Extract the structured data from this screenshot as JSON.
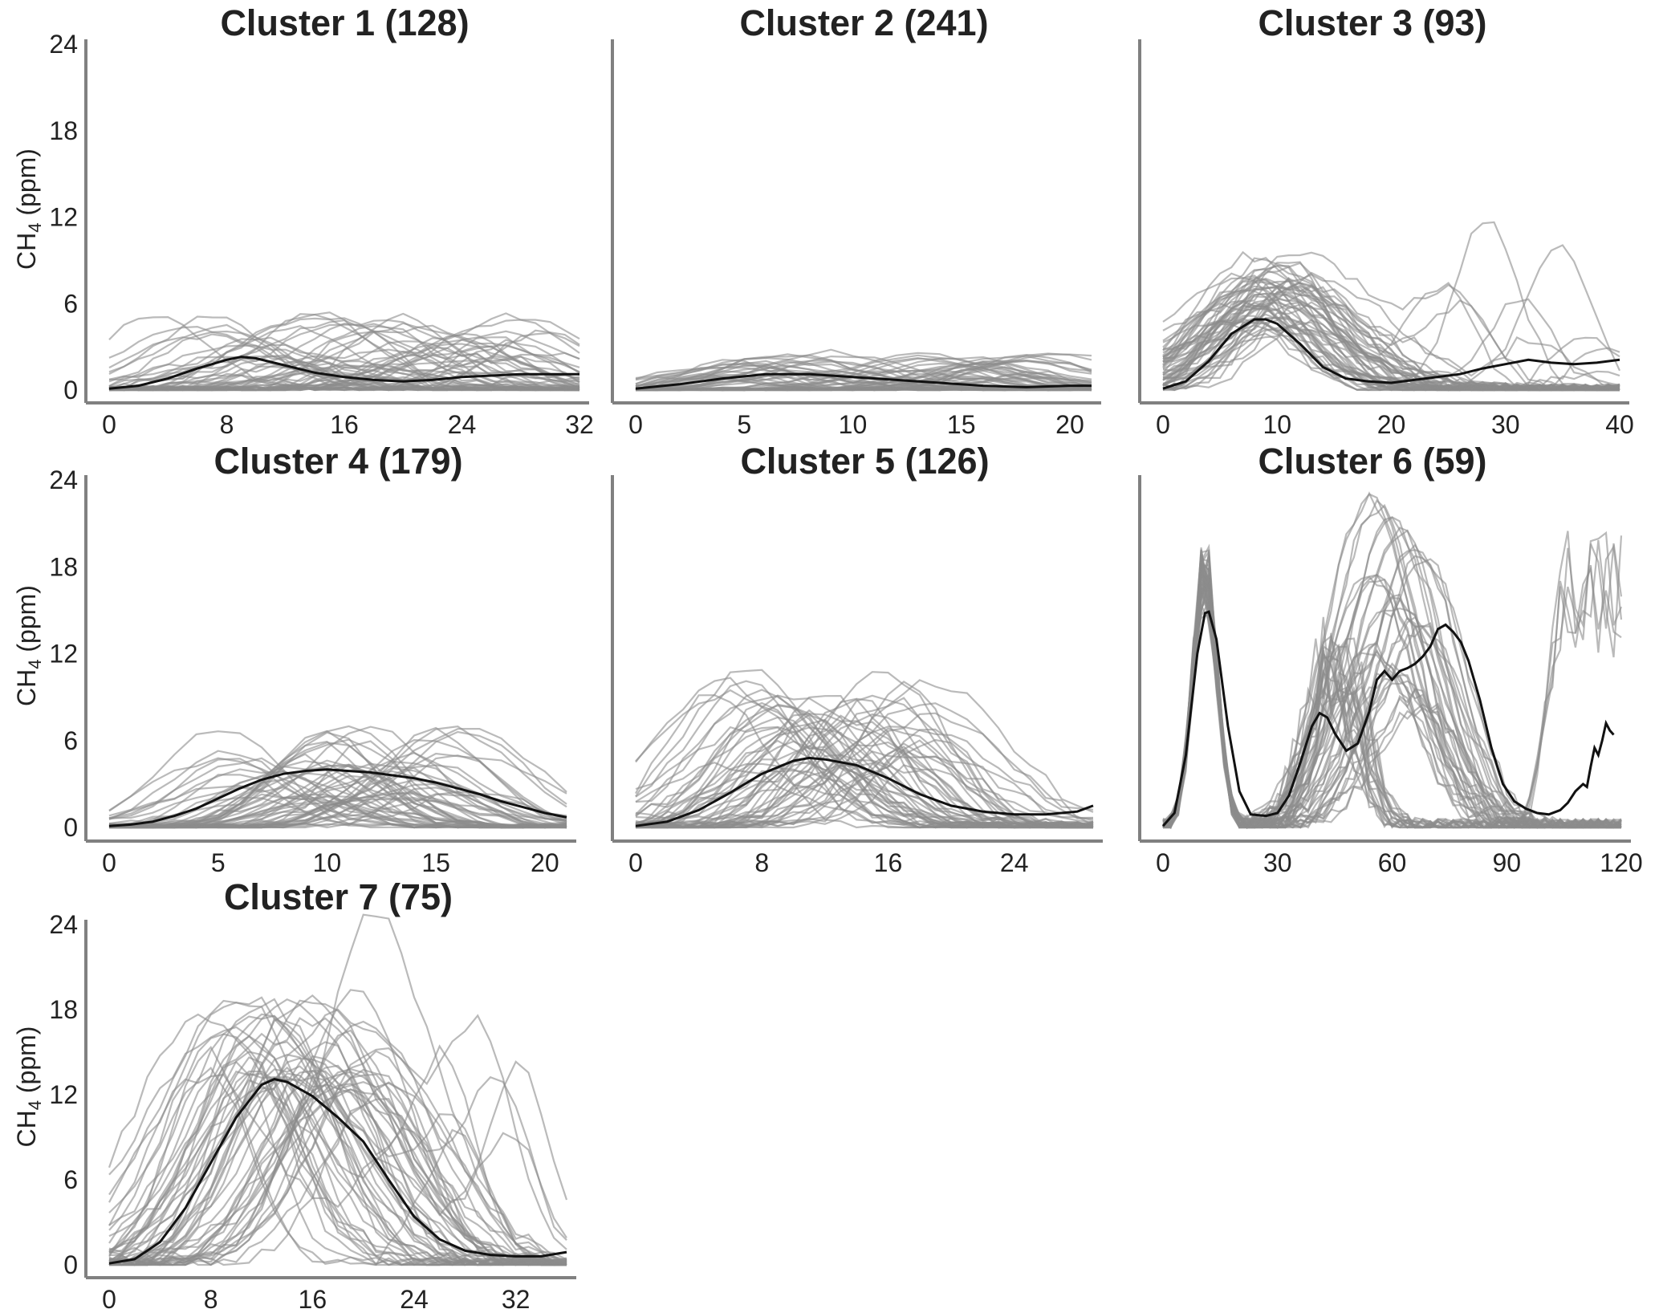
{
  "figure": {
    "colors": {
      "member_line": "#8c8c8c",
      "mean_line": "#111111",
      "axis": "#808080",
      "text": "#222222"
    }
  },
  "chart_data": [
    {
      "type": "line",
      "title": "Cluster 1 (128)",
      "xlabel": "",
      "ylabel": "CH4 (ppm)",
      "xticks": [
        0,
        8,
        16,
        24,
        32
      ],
      "yticks": [
        0,
        6,
        12,
        18,
        24
      ],
      "xlim": [
        0,
        32
      ],
      "ylim": [
        0,
        24
      ],
      "grid": false,
      "members": 128,
      "series": [
        {
          "role": "mean",
          "x": [
            0,
            2,
            4,
            6,
            8,
            9,
            10,
            12,
            14,
            16,
            18,
            20,
            22,
            24,
            26,
            28,
            30,
            32
          ],
          "y": [
            0.1,
            0.3,
            0.8,
            1.5,
            2.1,
            2.3,
            2.2,
            1.7,
            1.2,
            0.9,
            0.7,
            0.6,
            0.7,
            0.9,
            1.0,
            1.1,
            1.1,
            1.1
          ]
        }
      ],
      "members_envelope": {
        "peak_range": [
          0.8,
          5.5
        ],
        "peak_x_range": [
          3,
          31
        ],
        "noise": 0.5
      }
    },
    {
      "type": "line",
      "title": "Cluster 2 (241)",
      "xlabel": "",
      "ylabel": "",
      "xticks": [
        0,
        5,
        10,
        15,
        20
      ],
      "yticks": [],
      "xlim": [
        0,
        21
      ],
      "ylim": [
        0,
        24
      ],
      "grid": false,
      "members": 241,
      "series": [
        {
          "role": "mean",
          "x": [
            0,
            2,
            4,
            6,
            8,
            10,
            12,
            14,
            16,
            18,
            20,
            21
          ],
          "y": [
            0.1,
            0.4,
            0.8,
            1.1,
            1.1,
            0.9,
            0.7,
            0.5,
            0.3,
            0.2,
            0.3,
            0.3
          ]
        }
      ],
      "members_envelope": {
        "peak_range": [
          0.8,
          2.7
        ],
        "peak_x_range": [
          2,
          20
        ],
        "noise": 0.3
      }
    },
    {
      "type": "line",
      "title": "Cluster 3 (93)",
      "xlabel": "",
      "ylabel": "",
      "xticks": [
        0,
        10,
        20,
        30,
        40
      ],
      "yticks": [],
      "xlim": [
        0,
        40
      ],
      "ylim": [
        0,
        24
      ],
      "grid": false,
      "members": 93,
      "series": [
        {
          "role": "mean",
          "x": [
            0,
            2,
            4,
            6,
            8,
            9,
            10,
            12,
            14,
            16,
            18,
            20,
            22,
            24,
            26,
            28,
            30,
            32,
            34,
            36,
            38,
            40
          ],
          "y": [
            0.1,
            0.6,
            2.0,
            3.9,
            4.9,
            4.9,
            4.6,
            3.2,
            1.6,
            0.8,
            0.6,
            0.5,
            0.7,
            0.9,
            1.1,
            1.5,
            1.8,
            2.1,
            1.9,
            1.8,
            1.9,
            2.1
          ]
        }
      ],
      "members_envelope": {
        "peak_range": [
          4.0,
          9.5
        ],
        "peak_x_range": [
          6,
          13
        ],
        "late_peak_range": [
          1.0,
          12.8
        ],
        "noise": 0.8
      }
    },
    {
      "type": "line",
      "title": "Cluster 4 (179)",
      "xlabel": "",
      "ylabel": "CH4 (ppm)",
      "xticks": [
        0,
        5,
        10,
        15,
        20
      ],
      "yticks": [
        0,
        6,
        12,
        18,
        24
      ],
      "xlim": [
        0,
        21
      ],
      "ylim": [
        0,
        24
      ],
      "grid": false,
      "members": 179,
      "series": [
        {
          "role": "mean",
          "x": [
            0,
            1,
            2,
            3,
            4,
            5,
            6,
            7,
            8,
            9,
            10,
            11,
            12,
            13,
            14,
            15,
            16,
            17,
            18,
            19,
            20,
            21
          ],
          "y": [
            0.1,
            0.2,
            0.4,
            0.8,
            1.3,
            2.0,
            2.7,
            3.3,
            3.7,
            3.9,
            4.0,
            3.9,
            3.8,
            3.6,
            3.4,
            3.1,
            2.7,
            2.3,
            1.8,
            1.4,
            1.0,
            0.7
          ]
        }
      ],
      "members_envelope": {
        "peak_range": [
          2.0,
          7.3
        ],
        "peak_x_range": [
          5,
          17
        ],
        "noise": 0.5
      }
    },
    {
      "type": "line",
      "title": "Cluster 5 (126)",
      "xlabel": "",
      "ylabel": "",
      "xticks": [
        0,
        8,
        16,
        24
      ],
      "yticks": [],
      "xlim": [
        0,
        29
      ],
      "ylim": [
        0,
        24
      ],
      "grid": false,
      "members": 126,
      "series": [
        {
          "role": "mean",
          "x": [
            0,
            2,
            4,
            6,
            8,
            10,
            11,
            12,
            14,
            16,
            18,
            20,
            22,
            24,
            26,
            28,
            29
          ],
          "y": [
            0.1,
            0.4,
            1.2,
            2.4,
            3.7,
            4.6,
            4.8,
            4.7,
            4.3,
            3.4,
            2.3,
            1.5,
            1.1,
            0.9,
            0.9,
            1.1,
            1.5
          ]
        }
      ],
      "members_envelope": {
        "peak_range": [
          3.5,
          11.0
        ],
        "peak_x_range": [
          5,
          19
        ],
        "noise": 0.8
      }
    },
    {
      "type": "line",
      "title": "Cluster 6 (59)",
      "xlabel": "",
      "ylabel": "",
      "xticks": [
        0,
        30,
        60,
        90,
        120
      ],
      "yticks": [],
      "xlim": [
        0,
        120
      ],
      "ylim": [
        0,
        24
      ],
      "grid": false,
      "members": 59,
      "series": [
        {
          "role": "mean",
          "x": [
            0,
            3,
            6,
            9,
            11,
            12,
            14,
            17,
            20,
            23,
            27,
            30,
            33,
            36,
            39,
            41,
            43,
            45,
            48,
            51,
            54,
            56,
            58,
            60,
            62,
            64,
            66,
            68,
            70,
            72,
            74,
            76,
            78,
            80,
            83,
            86,
            89,
            92,
            95,
            98,
            101,
            104,
            106,
            108,
            110,
            111,
            112,
            113,
            114,
            115,
            116,
            117,
            118
          ],
          "y": [
            0.1,
            1.0,
            5.0,
            12.0,
            14.8,
            14.9,
            13.0,
            7.0,
            2.5,
            0.9,
            0.8,
            1.0,
            2.2,
            4.5,
            7.0,
            7.9,
            7.6,
            6.5,
            5.3,
            5.8,
            8.0,
            10.2,
            10.8,
            10.2,
            10.8,
            11.0,
            11.3,
            11.8,
            12.5,
            13.7,
            14.0,
            13.5,
            12.8,
            11.5,
            8.8,
            5.5,
            3.0,
            1.8,
            1.3,
            1.0,
            0.9,
            1.2,
            1.7,
            2.5,
            3.0,
            2.8,
            4.2,
            5.5,
            5.0,
            6.0,
            7.2,
            6.7,
            6.4
          ]
        }
      ],
      "members_envelope": {
        "first_peak_range": [
          15.0,
          20.0
        ],
        "broad_peak_range": [
          8.0,
          23.5
        ],
        "tail_range": [
          12.0,
          21.5
        ],
        "noise": 1.2
      }
    },
    {
      "type": "line",
      "title": "Cluster 7 (75)",
      "xlabel": "",
      "ylabel": "CH4 (ppm)",
      "xticks": [
        0,
        8,
        16,
        24,
        32
      ],
      "yticks": [
        0,
        6,
        12,
        18,
        24
      ],
      "xlim": [
        0,
        36
      ],
      "ylim": [
        0,
        24
      ],
      "grid": false,
      "members": 75,
      "series": [
        {
          "role": "mean",
          "x": [
            0,
            2,
            4,
            6,
            8,
            10,
            12,
            13,
            14,
            16,
            18,
            20,
            22,
            24,
            26,
            28,
            30,
            32,
            34,
            36
          ],
          "y": [
            0.1,
            0.4,
            1.6,
            4.0,
            7.2,
            10.4,
            12.7,
            13.1,
            12.9,
            11.9,
            10.4,
            8.7,
            6.0,
            3.4,
            1.8,
            1.0,
            0.7,
            0.6,
            0.6,
            0.9
          ]
        }
      ],
      "members_envelope": {
        "peak_range": [
          12.0,
          19.3
        ],
        "peak_x_range": [
          7,
          23
        ],
        "late_peak_range": [
          6.0,
          18.8
        ],
        "noise": 1.0
      }
    }
  ]
}
